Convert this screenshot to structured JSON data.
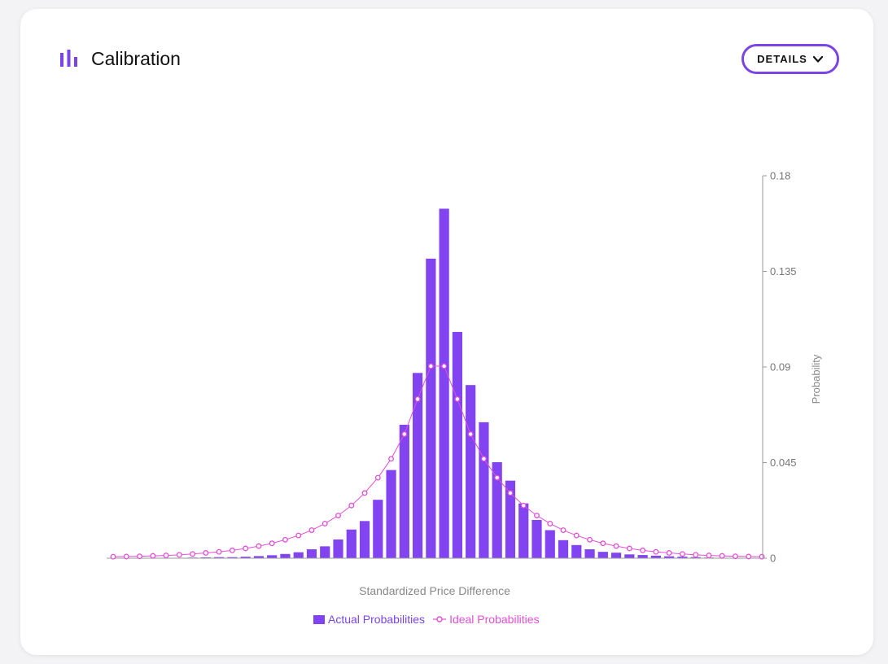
{
  "header": {
    "title": "Calibration",
    "details_label": "DETAILS",
    "icon": "bar-chart-icon"
  },
  "colors": {
    "accent": "#7b44e6",
    "bar": "#8144f0",
    "ideal": "#e44fd6",
    "axis": "#8a8a8a"
  },
  "chart_data": {
    "type": "bar",
    "xlabel": "Standardized Price Difference",
    "ylabel": "Probability",
    "ylim": [
      0,
      0.18
    ],
    "yticks": [
      "0",
      "0.045",
      "0.09",
      "0.135",
      "0.18"
    ],
    "y_axis_side": "right",
    "legend_position": "bottom-center",
    "grid": false,
    "series": [
      {
        "name": "Actual Probabilities",
        "type": "bar",
        "values": [
          0,
          0,
          0,
          0,
          0,
          0,
          0.0003,
          0.0004,
          0.0005,
          0.0005,
          0.0007,
          0.001,
          0.0014,
          0.002,
          0.0028,
          0.0042,
          0.0056,
          0.0088,
          0.0135,
          0.0175,
          0.0275,
          0.0415,
          0.0628,
          0.0872,
          0.141,
          0.1645,
          0.1065,
          0.0815,
          0.064,
          0.0452,
          0.0365,
          0.0258,
          0.018,
          0.0132,
          0.0085,
          0.0062,
          0.0042,
          0.003,
          0.0026,
          0.0018,
          0.0015,
          0.0012,
          0.0009,
          0.0007,
          0.0005,
          0.0003,
          0.0002,
          0.0001,
          0.0001,
          0
        ]
      },
      {
        "name": "Ideal Probabilities",
        "type": "line",
        "values": [
          0.0007,
          0.0008,
          0.0009,
          0.0011,
          0.0013,
          0.0016,
          0.002,
          0.0025,
          0.003,
          0.0037,
          0.0046,
          0.0057,
          0.007,
          0.0087,
          0.0107,
          0.0132,
          0.0163,
          0.0201,
          0.0248,
          0.0307,
          0.0379,
          0.0468,
          0.0584,
          0.0749,
          0.0904,
          0.0904,
          0.0749,
          0.0584,
          0.0468,
          0.0379,
          0.0307,
          0.0248,
          0.0201,
          0.0163,
          0.0132,
          0.0107,
          0.0087,
          0.007,
          0.0057,
          0.0046,
          0.0037,
          0.003,
          0.0025,
          0.002,
          0.0016,
          0.0013,
          0.0011,
          0.0009,
          0.0008,
          0.0007
        ]
      }
    ]
  }
}
